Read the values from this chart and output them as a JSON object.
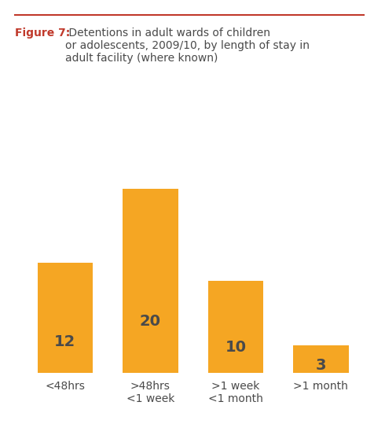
{
  "categories": [
    "<48hrs",
    ">48hrs\n<1 week",
    ">1 week\n<1 month",
    ">1 month"
  ],
  "values": [
    12,
    20,
    10,
    3
  ],
  "bar_color": "#F5A623",
  "label_color": "#4A4A4A",
  "title_bold": "Figure 7:",
  "title_rest": " Detentions in adult wards of children\nor adolescents, 2009/10, by length of stay in\nadult facility (where known)",
  "title_color_bold": "#C0392B",
  "title_color_rest": "#4A4A4A",
  "top_line_color": "#C0392B",
  "background_color": "#FFFFFF",
  "bar_label_fontsize": 14,
  "tick_label_fontsize": 10,
  "ylim": [
    0,
    23
  ],
  "figsize": [
    4.77,
    5.39
  ],
  "dpi": 100
}
